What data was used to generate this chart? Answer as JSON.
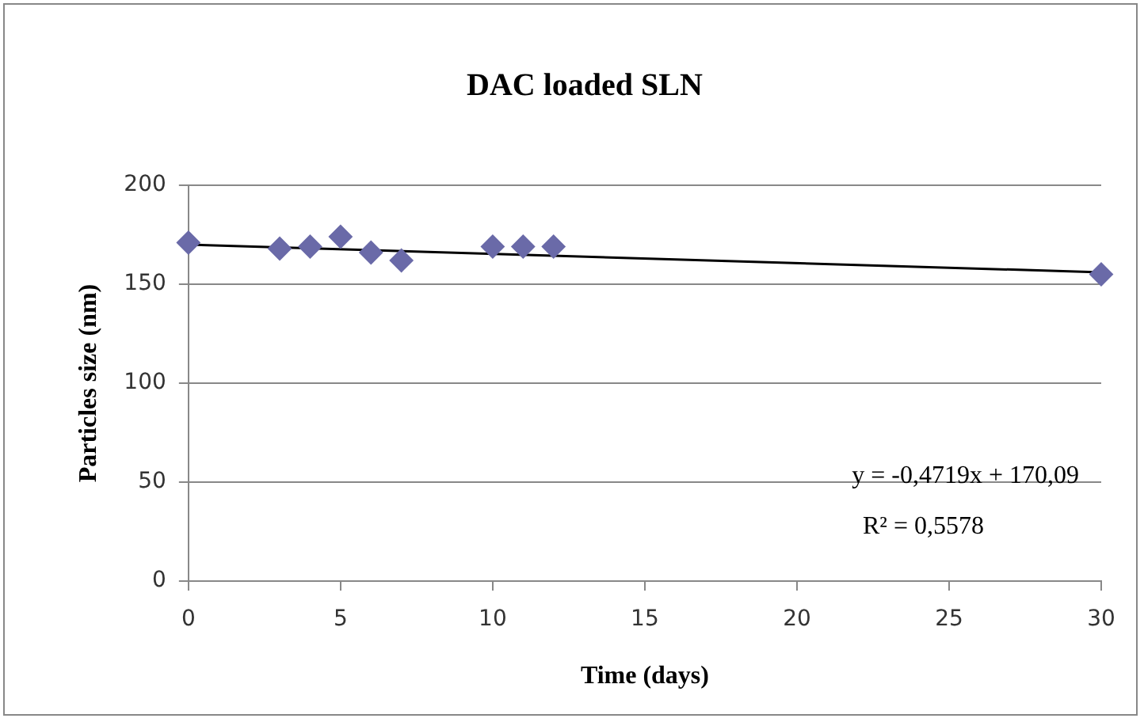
{
  "chart_data": {
    "type": "scatter",
    "title": "DAC loaded SLN",
    "xlabel": "Time (days)",
    "ylabel": "Particles size (nm)",
    "x": [
      0,
      3,
      4,
      5,
      6,
      7,
      10,
      11,
      12,
      30
    ],
    "series": [
      {
        "color": "#6a6aa8",
        "marker": "diamond",
        "values": [
          171,
          168,
          169,
          174,
          166,
          162,
          169,
          169,
          169,
          155
        ]
      },
      {
        "type": "line",
        "color": "#000000",
        "marker": "none",
        "x": [
          0,
          30
        ],
        "values": [
          170,
          156
        ]
      }
    ],
    "xlim": [
      0,
      30
    ],
    "xticks": [
      0,
      5,
      10,
      15,
      20,
      25,
      30
    ],
    "ylim": [
      0,
      200
    ],
    "yticks": [
      0,
      50,
      100,
      150,
      200
    ],
    "grid": "y",
    "legend": false,
    "annotations": [
      "y = -0,4719x + 170,09",
      "R² = 0,5578"
    ]
  }
}
